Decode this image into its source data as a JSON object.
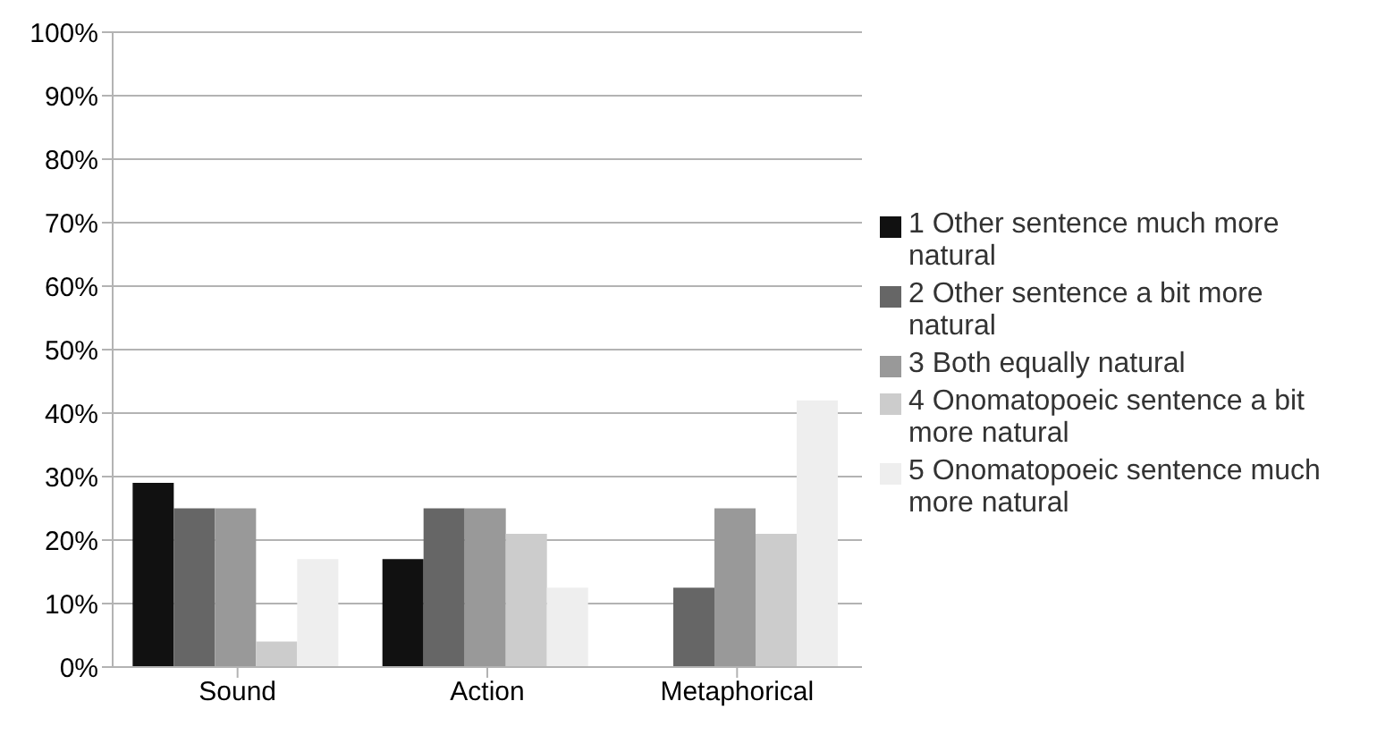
{
  "chart_data": {
    "type": "bar",
    "categories": [
      "Sound",
      "Action",
      "Metaphorical"
    ],
    "series": [
      {
        "name": "1 Other sentence much more natural",
        "color": "#111111",
        "values": [
          29,
          17,
          0
        ]
      },
      {
        "name": "2 Other sentence a bit more natural",
        "color": "#666666",
        "values": [
          25,
          25,
          12.5
        ]
      },
      {
        "name": "3 Both equally natural",
        "color": "#999999",
        "values": [
          25,
          25,
          25
        ]
      },
      {
        "name": "4 Onomatopoeic sentence a bit more natural",
        "color": "#cccccc",
        "values": [
          4,
          21,
          21
        ]
      },
      {
        "name": "5 Onomatopoeic sentence much more natural",
        "color": "#eeeeee",
        "values": [
          17,
          12.5,
          42
        ]
      }
    ],
    "ylim": [
      0,
      100
    ],
    "yticks": [
      {
        "value": 0,
        "label": "0%"
      },
      {
        "value": 10,
        "label": "10%"
      },
      {
        "value": 20,
        "label": "20%"
      },
      {
        "value": 30,
        "label": "30%"
      },
      {
        "value": 40,
        "label": "40%"
      },
      {
        "value": 50,
        "label": "50%"
      },
      {
        "value": 60,
        "label": "60%"
      },
      {
        "value": 70,
        "label": "70%"
      },
      {
        "value": 80,
        "label": "80%"
      },
      {
        "value": 90,
        "label": "90%"
      },
      {
        "value": 100,
        "label": "100%"
      }
    ],
    "grid": "y",
    "legend": "right"
  }
}
